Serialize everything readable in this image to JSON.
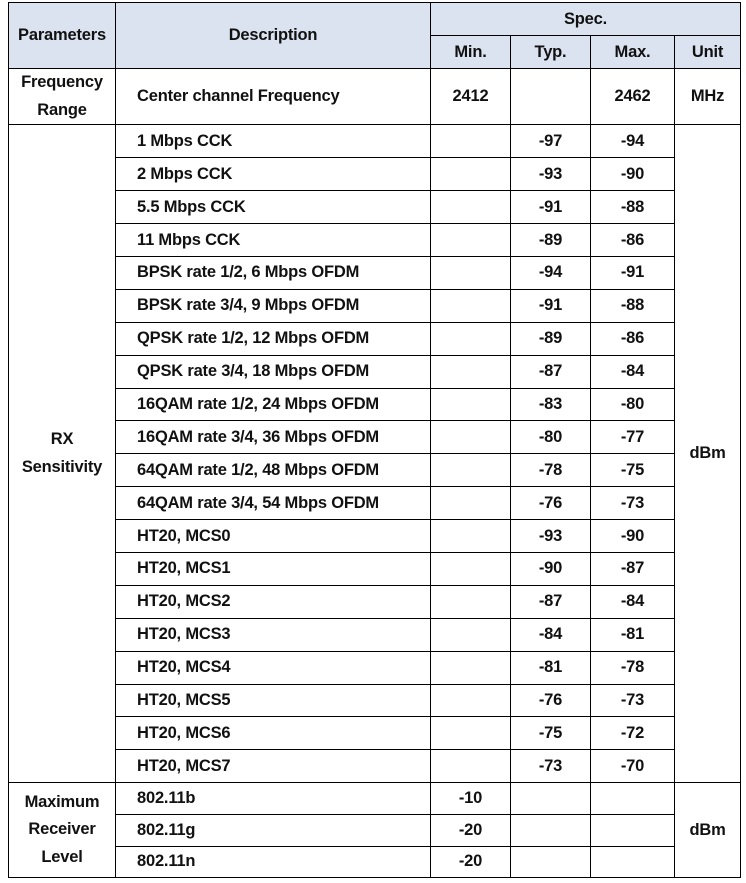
{
  "table": {
    "header": {
      "parameters": "Parameters",
      "description": "Description",
      "spec": "Spec.",
      "min": "Min.",
      "typ": "Typ.",
      "max": "Max.",
      "unit": "Unit"
    },
    "colors": {
      "header_bg": "#dbe3f1",
      "border": "#000000",
      "text": "#111111"
    },
    "sections": [
      {
        "parameter": "Frequency Range",
        "parameter_lines": [
          "Frequency",
          "Range"
        ],
        "unit": "MHz",
        "rows": [
          {
            "description": "Center channel Frequency",
            "min": "2412",
            "typ": "",
            "max": "2462"
          }
        ]
      },
      {
        "parameter": "RX Sensitivity",
        "parameter_lines": [
          "RX",
          "Sensitivity"
        ],
        "unit": "dBm",
        "rows": [
          {
            "description": "1 Mbps CCK",
            "min": "",
            "typ": "-97",
            "max": "-94"
          },
          {
            "description": "2 Mbps CCK",
            "min": "",
            "typ": "-93",
            "max": "-90"
          },
          {
            "description": "5.5 Mbps CCK",
            "min": "",
            "typ": "-91",
            "max": "-88"
          },
          {
            "description": "11 Mbps CCK",
            "min": "",
            "typ": "-89",
            "max": "-86"
          },
          {
            "description": "BPSK rate 1/2, 6 Mbps OFDM",
            "min": "",
            "typ": "-94",
            "max": "-91"
          },
          {
            "description": "BPSK rate 3/4, 9 Mbps OFDM",
            "min": "",
            "typ": "-91",
            "max": "-88"
          },
          {
            "description": "QPSK rate 1/2, 12 Mbps OFDM",
            "min": "",
            "typ": "-89",
            "max": "-86"
          },
          {
            "description": "QPSK rate 3/4, 18 Mbps OFDM",
            "min": "",
            "typ": "-87",
            "max": "-84"
          },
          {
            "description": "16QAM rate 1/2, 24 Mbps OFDM",
            "min": "",
            "typ": "-83",
            "max": "-80"
          },
          {
            "description": "16QAM rate 3/4, 36 Mbps OFDM",
            "min": "",
            "typ": "-80",
            "max": "-77"
          },
          {
            "description": "64QAM rate 1/2, 48 Mbps OFDM",
            "min": "",
            "typ": "-78",
            "max": "-75"
          },
          {
            "description": "64QAM rate 3/4, 54 Mbps OFDM",
            "min": "",
            "typ": "-76",
            "max": "-73"
          },
          {
            "description": "HT20, MCS0",
            "min": "",
            "typ": "-93",
            "max": "-90"
          },
          {
            "description": "HT20, MCS1",
            "min": "",
            "typ": "-90",
            "max": "-87"
          },
          {
            "description": "HT20, MCS2",
            "min": "",
            "typ": "-87",
            "max": "-84"
          },
          {
            "description": "HT20, MCS3",
            "min": "",
            "typ": "-84",
            "max": "-81"
          },
          {
            "description": "HT20, MCS4",
            "min": "",
            "typ": "-81",
            "max": "-78"
          },
          {
            "description": "HT20, MCS5",
            "min": "",
            "typ": "-76",
            "max": "-73"
          },
          {
            "description": "HT20, MCS6",
            "min": "",
            "typ": "-75",
            "max": "-72"
          },
          {
            "description": "HT20, MCS7",
            "min": "",
            "typ": "-73",
            "max": "-70"
          }
        ]
      },
      {
        "parameter": "Maximum Receiver Level",
        "parameter_lines": [
          "Maximum",
          "Receiver",
          "Level"
        ],
        "unit": "dBm",
        "rows": [
          {
            "description": "802.11b",
            "min": "-10",
            "typ": "",
            "max": ""
          },
          {
            "description": "802.11g",
            "min": "-20",
            "typ": "",
            "max": ""
          },
          {
            "description": "802.11n",
            "min": "-20",
            "typ": "",
            "max": ""
          }
        ]
      }
    ]
  }
}
